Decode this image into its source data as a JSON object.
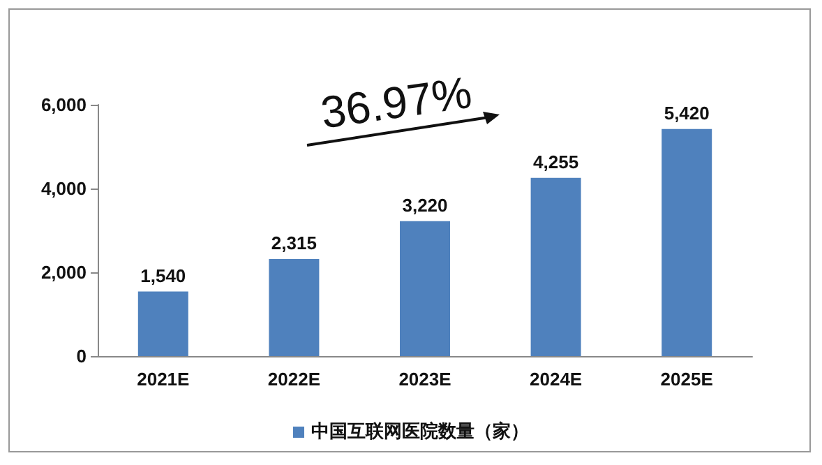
{
  "chart_data": {
    "type": "bar",
    "categories": [
      "2021E",
      "2022E",
      "2023E",
      "2024E",
      "2025E"
    ],
    "series": [
      {
        "name": "中国互联网医院数量（家）",
        "color": "#4f81bd",
        "values": [
          1540,
          2315,
          3220,
          4255,
          5420
        ],
        "value_labels": [
          "1,540",
          "2,315",
          "3,220",
          "4,255",
          "5,420"
        ]
      }
    ],
    "ylim": [
      0,
      6000
    ],
    "yticks": [
      0,
      {
        "value": 2000,
        "label": "2,000"
      },
      {
        "value": 4000,
        "label": "4,000"
      },
      {
        "value": 6000,
        "label": "6,000"
      }
    ],
    "annotations": [
      "36.97%"
    ],
    "grid": false,
    "legend": "bottom"
  }
}
